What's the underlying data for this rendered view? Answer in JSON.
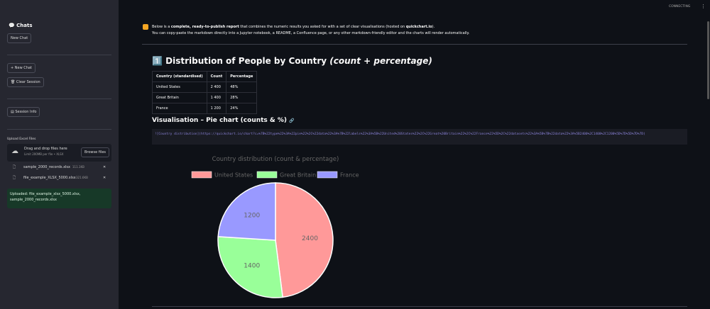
{
  "header": {
    "status": "CONNECTING",
    "menu": "⋮"
  },
  "sidebar": {
    "title": "💬 Chats",
    "new_chat_top": "New Chat",
    "new_chat": "+ New Chat",
    "clear_session": "🗑 Clear Session",
    "session_info": "▤ Session Info",
    "upload": {
      "label": "Upload Excel Files",
      "drop_text": "Drag and drop files here",
      "limit": "Limit 200MB per file • XLSX",
      "browse": "Browse files",
      "files": [
        {
          "name": "sample_2000_records.xlsx",
          "size": "111.1KB"
        },
        {
          "name": "file_example_XLSX_5000.xlsx",
          "size": "321.6KB"
        }
      ]
    },
    "success": "Uploaded: file_example_xlsx_5000.xlsx, sample_2000_records.xlsx"
  },
  "report": {
    "intro_lead": "Below is a ",
    "intro_bold1": "complete, ready-to-publish report",
    "intro_mid": " that combines the numeric results you asked for with a set of clear visualisations (hosted on ",
    "intro_bold2": "quickchart.io",
    "intro_end": ").",
    "intro_line2": "You can copy-paste the markdown directly into a Jupyter notebook, a README, a Confluence page, or any other markdown-friendly editor and the charts will render automatically.",
    "heading": "1️⃣ Distribution of People by Country ",
    "heading_em": "(count + percentage)",
    "table": {
      "headers": [
        "Country (standardised)",
        "Count",
        "Percentage"
      ],
      "rows": [
        [
          "United States",
          "2 400",
          "48%"
        ],
        [
          "Great Britain",
          "1 400",
          "28%"
        ],
        [
          "France",
          "1 200",
          "24%"
        ]
      ]
    },
    "subheading": "Visualisation – Pie chart (counts & %)",
    "link_icon": "🔗",
    "code": "![Country distribution](https://quickchart.io/chart?c=%7B%22type%22%3A%22pie%22%2C%22data%22%3A%7B%22labels%22%3A%5B%22United%20States%22%2C%22Great%20Britain%22%2C%22France%22%5D%2C%22datasets%22%3A%5B%7B%22data%22%3A%5B2400%2C1400%2C1200%5D%7D%5D%7D%7D)"
  },
  "chart_data": {
    "type": "pie",
    "title": "Country distribution (count & percentage)",
    "categories": [
      "United States",
      "Great Britain",
      "France"
    ],
    "values": [
      2400,
      1400,
      1200
    ],
    "colors": [
      "#ff9999",
      "#99ff99",
      "#9999ff"
    ],
    "legend": "top"
  }
}
